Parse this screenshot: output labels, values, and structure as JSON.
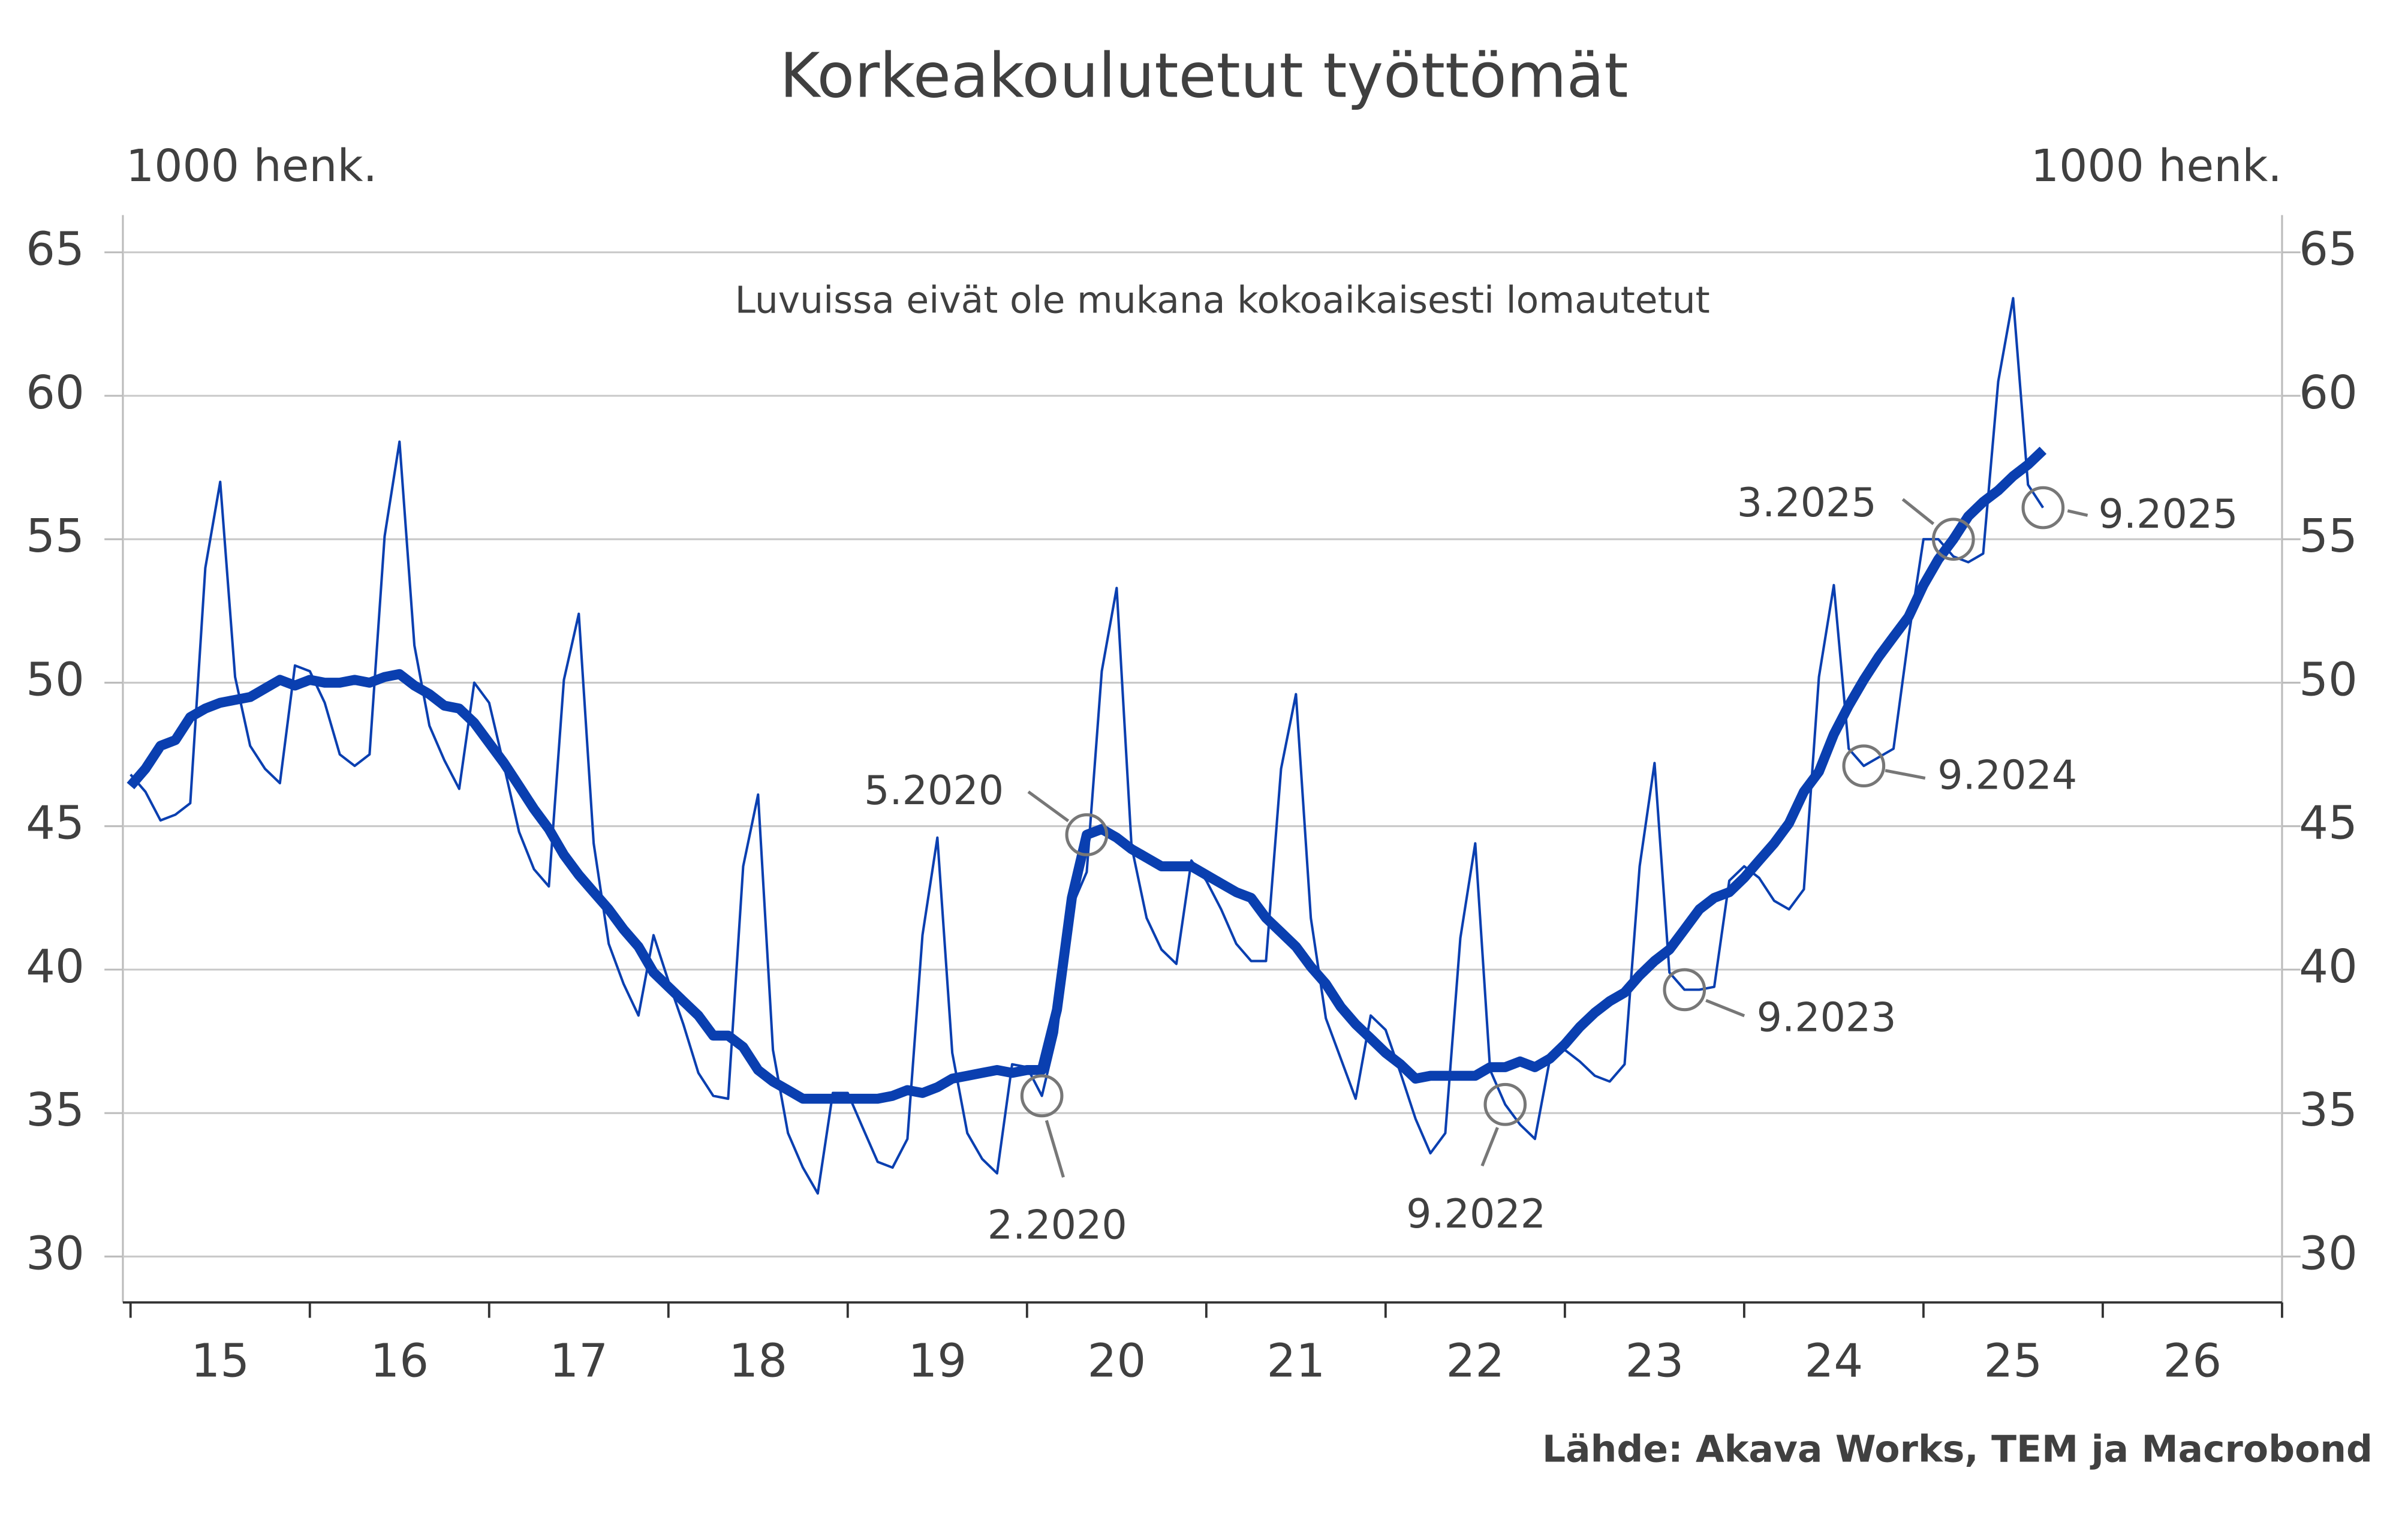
{
  "chart_data": {
    "type": "line",
    "title": "Korkeakoulutetut työttömät",
    "y_label": "1000 henk.",
    "y2_label": "1000 henk.",
    "note": "Luvuissa eivät ole mukana kokoaikaisesti lomautetut",
    "source": "Lähde: Akava Works, TEM ja Macrobond",
    "annotations": [
      "2.2020",
      "5.2020",
      "9.2022",
      "9.2023",
      "9.2024",
      "3.2025",
      "9.2025"
    ],
    "x": [
      15,
      15.083,
      15.167,
      15.25,
      15.333,
      15.417,
      15.5,
      15.583,
      15.667,
      15.75,
      15.833,
      15.917,
      16,
      16.083,
      16.167,
      16.25,
      16.333,
      16.417,
      16.5,
      16.583,
      16.667,
      16.75,
      16.833,
      16.917,
      17,
      17.083,
      17.167,
      17.25,
      17.333,
      17.417,
      17.5,
      17.583,
      17.667,
      17.75,
      17.833,
      17.917,
      18,
      18.083,
      18.167,
      18.25,
      18.333,
      18.417,
      18.5,
      18.583,
      18.667,
      18.75,
      18.833,
      18.917,
      19,
      19.083,
      19.167,
      19.25,
      19.333,
      19.417,
      19.5,
      19.583,
      19.667,
      19.75,
      19.833,
      19.917,
      20,
      20.083,
      20.167,
      20.25,
      20.333,
      20.417,
      20.5,
      20.583,
      20.667,
      20.75,
      20.833,
      20.917,
      21,
      21.083,
      21.167,
      21.25,
      21.333,
      21.417,
      21.5,
      21.583,
      21.667,
      21.75,
      21.833,
      21.917,
      22,
      22.083,
      22.167,
      22.25,
      22.333,
      22.417,
      22.5,
      22.583,
      22.667,
      22.75,
      22.833,
      22.917,
      23,
      23.083,
      23.167,
      23.25,
      23.333,
      23.417,
      23.5,
      23.583,
      23.667,
      23.75,
      23.833,
      23.917,
      24,
      24.083,
      24.167,
      24.25,
      24.333,
      24.417,
      24.5,
      24.583,
      24.667,
      24.75,
      24.833,
      24.917,
      25,
      25.083,
      25.167,
      25.25,
      25.333,
      25.417,
      25.5,
      25.583,
      25.667
    ],
    "series": [
      {
        "color": "#0a3fb0",
        "values": [
          46.8,
          46.2,
          45.2,
          45.4,
          45.8,
          54.0,
          57.0,
          50.2,
          47.8,
          47.0,
          46.5,
          50.6,
          50.4,
          49.3,
          47.5,
          47.1,
          47.5,
          55.1,
          58.4,
          51.3,
          48.5,
          47.3,
          46.3,
          50.0,
          49.3,
          47.1,
          44.8,
          43.5,
          42.9,
          50.1,
          52.4,
          44.4,
          40.9,
          39.5,
          38.4,
          41.2,
          39.6,
          38.1,
          36.4,
          35.6,
          35.5,
          43.6,
          46.1,
          37.2,
          34.3,
          33.1,
          32.2,
          35.7,
          35.7,
          34.5,
          33.3,
          33.1,
          34.1,
          41.2,
          44.6,
          37.1,
          34.3,
          33.4,
          32.9,
          36.7,
          36.6,
          35.6,
          37.8,
          42.2,
          43.4,
          50.4,
          53.3,
          44.3,
          41.8,
          40.7,
          40.2,
          43.8,
          43.1,
          42.1,
          40.9,
          40.3,
          40.3,
          47.0,
          49.6,
          41.8,
          38.3,
          36.9,
          35.5,
          38.4,
          37.9,
          36.4,
          34.8,
          33.6,
          34.3,
          41.1,
          44.4,
          36.5,
          35.3,
          34.6,
          34.1,
          36.9,
          37.2,
          36.8,
          36.3,
          36.1,
          36.7,
          43.6,
          47.2,
          39.9,
          39.3,
          39.3,
          39.4,
          43.1,
          43.6,
          43.2,
          42.4,
          42.1,
          42.8,
          50.2,
          53.4,
          47.7,
          47.1,
          47.4,
          47.7,
          51.6,
          55.0,
          55.0,
          54.4,
          54.2,
          54.5,
          60.5,
          63.4,
          56.9,
          56.1
        ]
      },
      {
        "color": "#0a3fb0",
        "values": [
          46.4,
          47.0,
          47.8,
          48.0,
          48.8,
          49.1,
          49.3,
          49.4,
          49.5,
          49.8,
          50.1,
          49.9,
          50.1,
          50.0,
          50.0,
          50.1,
          50.0,
          50.2,
          50.3,
          49.9,
          49.6,
          49.2,
          49.1,
          48.6,
          47.9,
          47.2,
          46.4,
          45.6,
          44.9,
          44.0,
          43.3,
          42.7,
          42.1,
          41.4,
          40.8,
          39.9,
          39.4,
          38.9,
          38.4,
          37.7,
          37.7,
          37.3,
          36.5,
          36.1,
          35.8,
          35.5,
          35.5,
          35.5,
          35.5,
          35.5,
          35.5,
          35.6,
          35.8,
          35.7,
          35.9,
          36.2,
          36.3,
          36.4,
          36.5,
          36.4,
          36.5,
          36.5,
          38.6,
          42.5,
          44.7,
          44.9,
          44.6,
          44.2,
          43.9,
          43.6,
          43.6,
          43.6,
          43.3,
          43.0,
          42.7,
          42.5,
          41.8,
          41.3,
          40.8,
          40.1,
          39.5,
          38.7,
          38.1,
          37.6,
          37.1,
          36.7,
          36.2,
          36.3,
          36.3,
          36.3,
          36.3,
          36.6,
          36.6,
          36.8,
          36.6,
          36.9,
          37.4,
          38.0,
          38.5,
          38.9,
          39.2,
          39.8,
          40.3,
          40.7,
          41.4,
          42.1,
          42.5,
          42.7,
          43.2,
          43.8,
          44.4,
          45.1,
          46.2,
          46.9,
          48.2,
          49.2,
          50.1,
          50.9,
          51.6,
          52.3,
          53.4,
          54.3,
          55.0,
          55.8,
          56.3,
          56.7,
          57.2,
          57.6,
          58.1
        ]
      }
    ],
    "xlim": [
      15,
      27
    ],
    "xticks": [
      15,
      16,
      17,
      18,
      19,
      20,
      21,
      22,
      23,
      24,
      25,
      26
    ],
    "ylim": [
      28.4,
      66.3
    ],
    "yticks": [
      30,
      35,
      40,
      45,
      50,
      55,
      60,
      65
    ],
    "y2lim": [
      28.4,
      66.3
    ],
    "y2ticks": [
      30,
      35,
      40,
      45,
      50,
      55,
      60,
      65
    ],
    "grid": true
  }
}
